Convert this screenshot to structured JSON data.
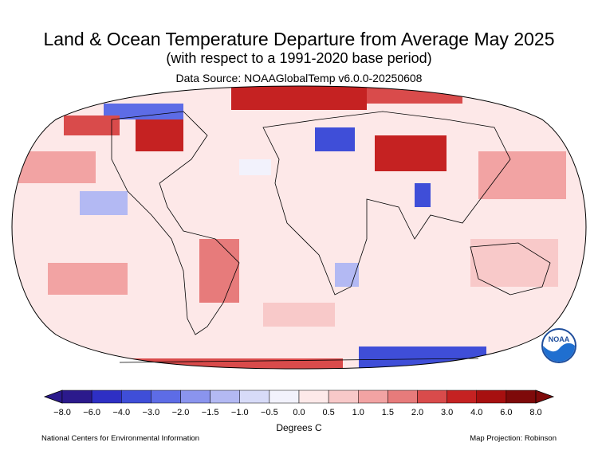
{
  "header": {
    "title": "Land & Ocean Temperature Departure from Average May 2025",
    "subtitle": "(with respect to a 1991-2020 base period)",
    "source": "Data Source: NOAAGlobalTemp v6.0.0-20250608"
  },
  "legend": {
    "units": "Degrees C",
    "ticks": [
      "−8.0",
      "−6.0",
      "−4.0",
      "−3.0",
      "−2.0",
      "−1.5",
      "−1.0",
      "−0.5",
      "0.0",
      "0.5",
      "1.0",
      "1.5",
      "2.0",
      "3.0",
      "4.0",
      "6.0",
      "8.0"
    ],
    "colors": [
      "#2b1a8c",
      "#2e2fc4",
      "#3f4ed8",
      "#5d6ce6",
      "#8a94ee",
      "#b3b9f3",
      "#d7dbf8",
      "#f2f2fc",
      "#fde9e9",
      "#f8c9c9",
      "#f2a3a3",
      "#e77b7b",
      "#d94b4b",
      "#c52222",
      "#a71010",
      "#7e0a0a"
    ]
  },
  "map": {
    "projection_label": "Map Projection: Robinson",
    "base_color": "#fde8e8",
    "ocean_color": "#fce4e4"
  },
  "footer": {
    "left": "National Centers for Environmental Information",
    "right": "Map Projection: Robinson"
  },
  "logo": {
    "text": "NOAA",
    "icon": "noaa-logo-icon"
  }
}
